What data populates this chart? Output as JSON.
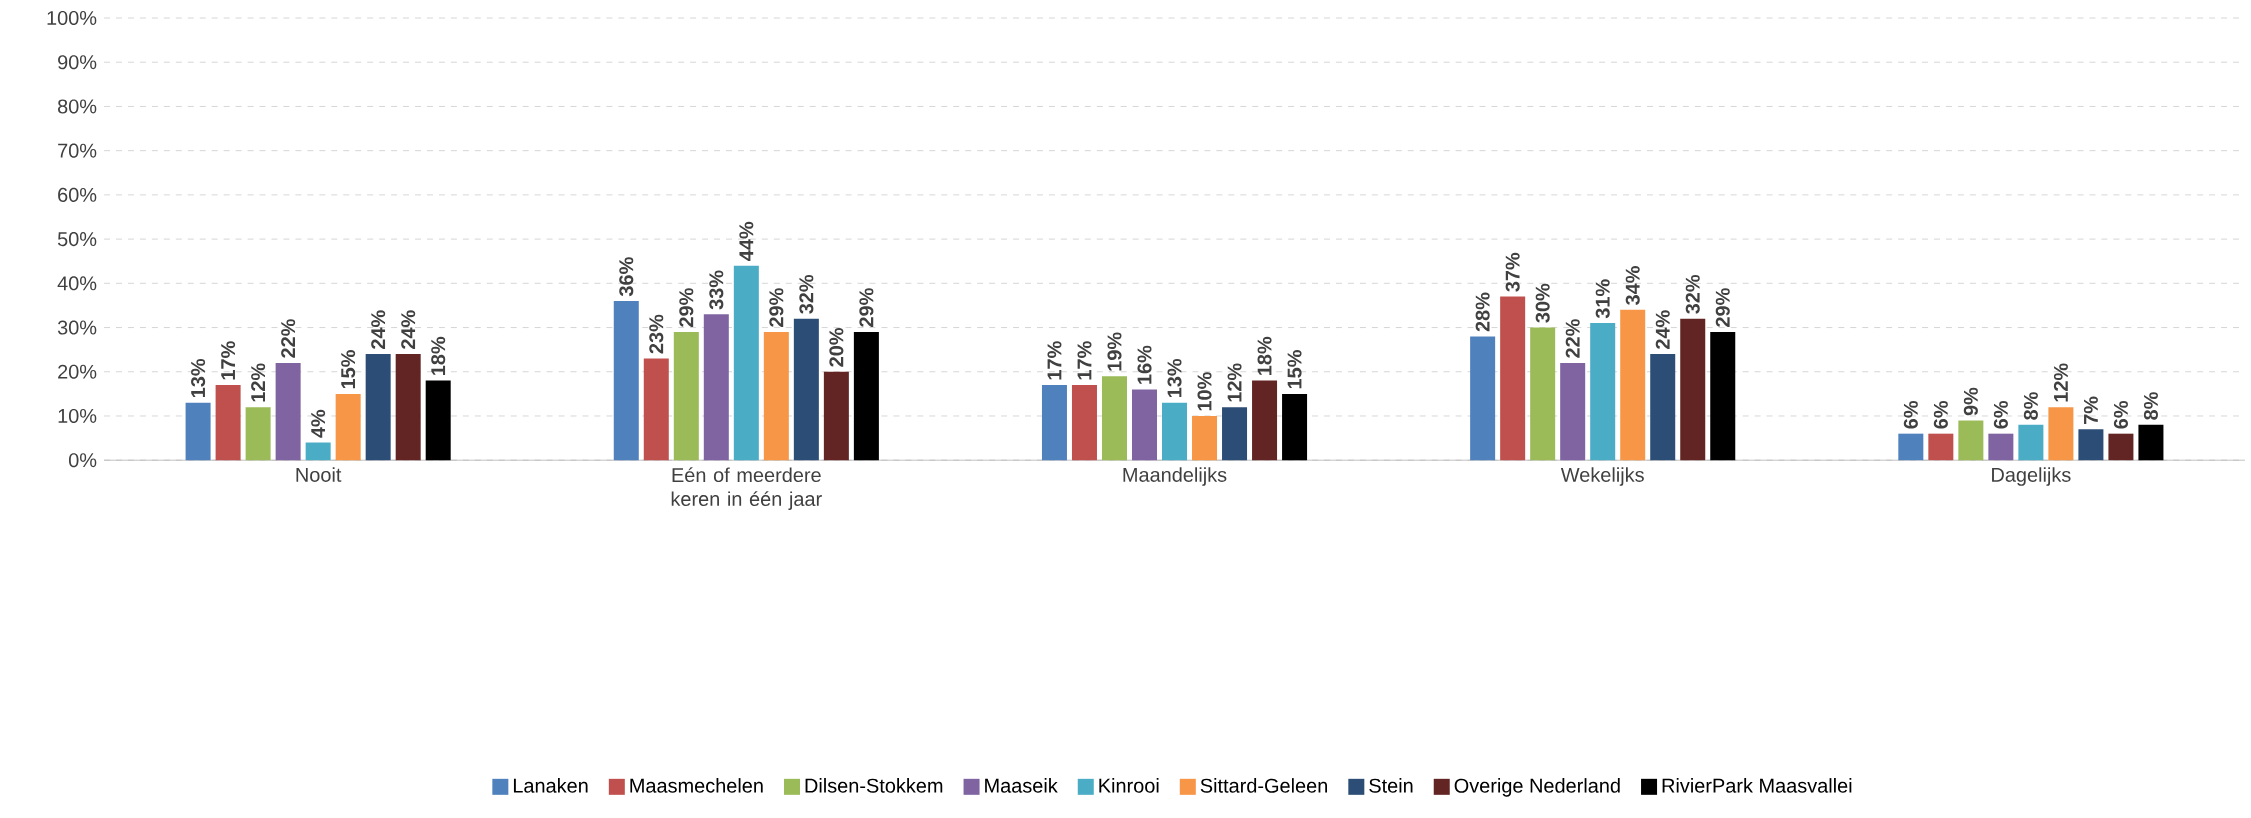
{
  "chart_data": {
    "type": "bar",
    "categories": [
      "Nooit",
      "Eén of meerdere keren in één jaar",
      "Maandelijks",
      "Wekelijks",
      "Dagelijks"
    ],
    "series": [
      {
        "name": "Lanaken",
        "color": "#4f81bd",
        "values": [
          13,
          36,
          17,
          28,
          6
        ],
        "value_labels": [
          "13%",
          "36%",
          "17%",
          "28%",
          "6%"
        ]
      },
      {
        "name": "Maasmechelen",
        "color": "#c0504d",
        "values": [
          17,
          23,
          17,
          37,
          6
        ],
        "value_labels": [
          "17%",
          "23%",
          "17%",
          "37%",
          "6%"
        ]
      },
      {
        "name": "Dilsen-Stokkem",
        "color": "#9bbb59",
        "values": [
          12,
          29,
          19,
          30,
          9
        ],
        "value_labels": [
          "12%",
          "29%",
          "19%",
          "30%",
          "9%"
        ]
      },
      {
        "name": "Maaseik",
        "color": "#8064a2",
        "values": [
          22,
          33,
          16,
          22,
          6
        ],
        "value_labels": [
          "22%",
          "33%",
          "16%",
          "22%",
          "6%"
        ]
      },
      {
        "name": "Kinrooi",
        "color": "#4bacc6",
        "values": [
          4,
          44,
          13,
          31,
          8
        ],
        "value_labels": [
          "4%",
          "44%",
          "13%",
          "31%",
          "8%"
        ]
      },
      {
        "name": "Sittard-Geleen",
        "color": "#f79646",
        "values": [
          15,
          29,
          10,
          34,
          12
        ],
        "value_labels": [
          "15%",
          "29%",
          "10%",
          "34%",
          "12%"
        ]
      },
      {
        "name": "Stein",
        "color": "#2c4d75",
        "values": [
          24,
          32,
          12,
          24,
          7
        ],
        "value_labels": [
          "24%",
          "32%",
          "12%",
          "24%",
          "7%"
        ]
      },
      {
        "name": "Overige Nederland",
        "color": "#632523",
        "values": [
          24,
          20,
          18,
          32,
          6
        ],
        "value_labels": [
          "24%",
          "20%",
          "18%",
          "32%",
          "6%"
        ]
      },
      {
        "name": "RivierPark Maasvallei",
        "color": "#000000",
        "values": [
          18,
          29,
          15,
          29,
          8
        ],
        "value_labels": [
          "18%",
          "29%",
          "15%",
          "29%",
          "8%"
        ]
      }
    ],
    "ylim": [
      0,
      100
    ],
    "yticks": [
      {
        "value": 0,
        "label": "0%"
      },
      {
        "value": 10,
        "label": "10%"
      },
      {
        "value": 20,
        "label": "20%"
      },
      {
        "value": 30,
        "label": "30%"
      },
      {
        "value": 40,
        "label": "40%"
      },
      {
        "value": 50,
        "label": "50%"
      },
      {
        "value": 60,
        "label": "60%"
      },
      {
        "value": 70,
        "label": "70%"
      },
      {
        "value": 80,
        "label": "80%"
      },
      {
        "value": 90,
        "label": "90%"
      },
      {
        "value": 100,
        "label": "100%"
      }
    ],
    "grid": "y",
    "legend": "bottom"
  }
}
